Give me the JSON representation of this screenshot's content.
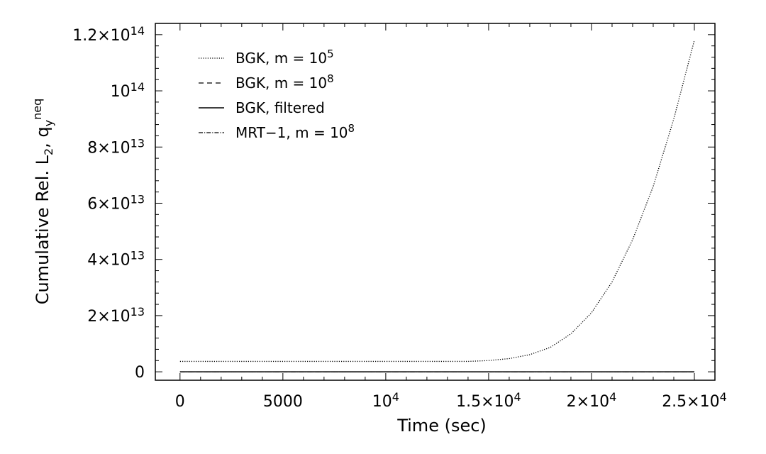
{
  "chart_data": {
    "type": "line",
    "xlabel": "Time (sec)",
    "ylabel_main": "Cumulative Rel. L",
    "ylabel_sub": "2",
    "ylabel_mid": ", q",
    "ylabel_sub2": "y",
    "ylabel_sup": "neq",
    "xlim": [
      -1200,
      26000
    ],
    "ylim": [
      -3000000000000,
      124000000000000
    ],
    "x_ticks": [
      {
        "value": 0,
        "base": "0",
        "exp": ""
      },
      {
        "value": 5000,
        "base": "5000",
        "exp": ""
      },
      {
        "value": 10000,
        "base": "10",
        "exp": "4"
      },
      {
        "value": 15000,
        "base": "1.5×10",
        "exp": "4"
      },
      {
        "value": 20000,
        "base": "2×10",
        "exp": "4"
      },
      {
        "value": 25000,
        "base": "2.5×10",
        "exp": "4"
      }
    ],
    "y_ticks": [
      {
        "value": 0,
        "base": "0",
        "exp": ""
      },
      {
        "value": 20000000000000,
        "base": "2×10",
        "exp": "13"
      },
      {
        "value": 40000000000000,
        "base": "4×10",
        "exp": "13"
      },
      {
        "value": 60000000000000,
        "base": "6×10",
        "exp": "13"
      },
      {
        "value": 80000000000000,
        "base": "8×10",
        "exp": "13"
      },
      {
        "value": 100000000000000,
        "base": "10",
        "exp": "14"
      },
      {
        "value": 120000000000000,
        "base": "1.2×10",
        "exp": "14"
      }
    ],
    "legend_position": "top-left",
    "grid": false,
    "series": [
      {
        "name": "BGK, m = 10",
        "name_exp": "5",
        "style": "dotted",
        "x": [
          0,
          5000,
          10000,
          14000,
          15000,
          16000,
          17000,
          18000,
          19000,
          20000,
          21000,
          22000,
          23000,
          24000,
          25000
        ],
        "y": [
          3700000000000,
          3700000000000,
          3700000000000,
          3700000000000,
          4000000000000,
          4700000000000,
          6100000000000,
          8700000000000,
          13500000000000,
          21000000000000,
          32000000000000,
          47000000000000,
          66000000000000,
          90000000000000,
          118000000000000
        ]
      },
      {
        "name": "BGK, m = 10",
        "name_exp": "8",
        "style": "dashed",
        "x": [
          0,
          25000
        ],
        "y": [
          0,
          0
        ]
      },
      {
        "name": "BGK, filtered",
        "name_exp": "",
        "style": "solid",
        "x": [
          0,
          25000
        ],
        "y": [
          0,
          0
        ]
      },
      {
        "name": "MRT−1, m = 10",
        "name_exp": "8",
        "style": "dashdot",
        "x": [
          0,
          25000
        ],
        "y": [
          0,
          0
        ]
      }
    ]
  }
}
